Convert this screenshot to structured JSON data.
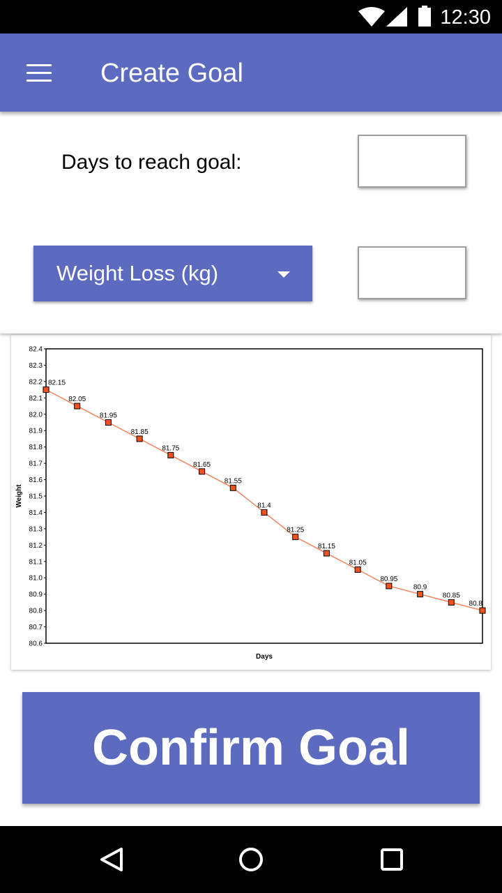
{
  "status_bar": {
    "time": "12:30",
    "icons": [
      "wifi-icon",
      "cell-signal-icon",
      "battery-icon"
    ]
  },
  "app_bar": {
    "title": "Create Goal",
    "menu_icon": "hamburger-menu-icon"
  },
  "form": {
    "days_label": "Days to reach goal:",
    "days_value": "",
    "goal_type_selected": "Weight Loss (kg)",
    "goal_amount_value": ""
  },
  "chart_data": {
    "type": "line",
    "xlabel": "Days",
    "ylabel": "Weight",
    "ylim": [
      80.6,
      82.4
    ],
    "y_ticks": [
      "82.4",
      "82.3",
      "82.2",
      "82.1",
      "82.0",
      "81.9",
      "81.8",
      "81.7",
      "81.6",
      "81.5",
      "81.4",
      "81.3",
      "81.2",
      "81.1",
      "81.0",
      "80.9",
      "80.8",
      "80.7",
      "80.6"
    ],
    "grid": false,
    "series": [
      {
        "values": [
          82.15,
          82.05,
          81.95,
          81.85,
          81.75,
          81.65,
          81.55,
          81.4,
          81.25,
          81.15,
          81.05,
          80.95,
          80.9,
          80.85,
          80.8
        ],
        "labels": [
          "82.15",
          "82.05",
          "81.95",
          "81.85",
          "81.75",
          "81.65",
          "81.55",
          "81.4",
          "81.25",
          "81.15",
          "81.05",
          "80.95",
          "80.9",
          "80.85",
          "80.8"
        ],
        "line_color": "#f4845f",
        "marker_color": "#f4511e"
      }
    ]
  },
  "confirm_button": {
    "label": "Confirm Goal"
  },
  "nav_bar": {
    "back": "back-triangle-icon",
    "home": "home-circle-icon",
    "recents": "recents-square-icon"
  },
  "colors": {
    "primary": "#5c6bc0",
    "status_bar": "#000000",
    "nav_bar": "#000000"
  }
}
